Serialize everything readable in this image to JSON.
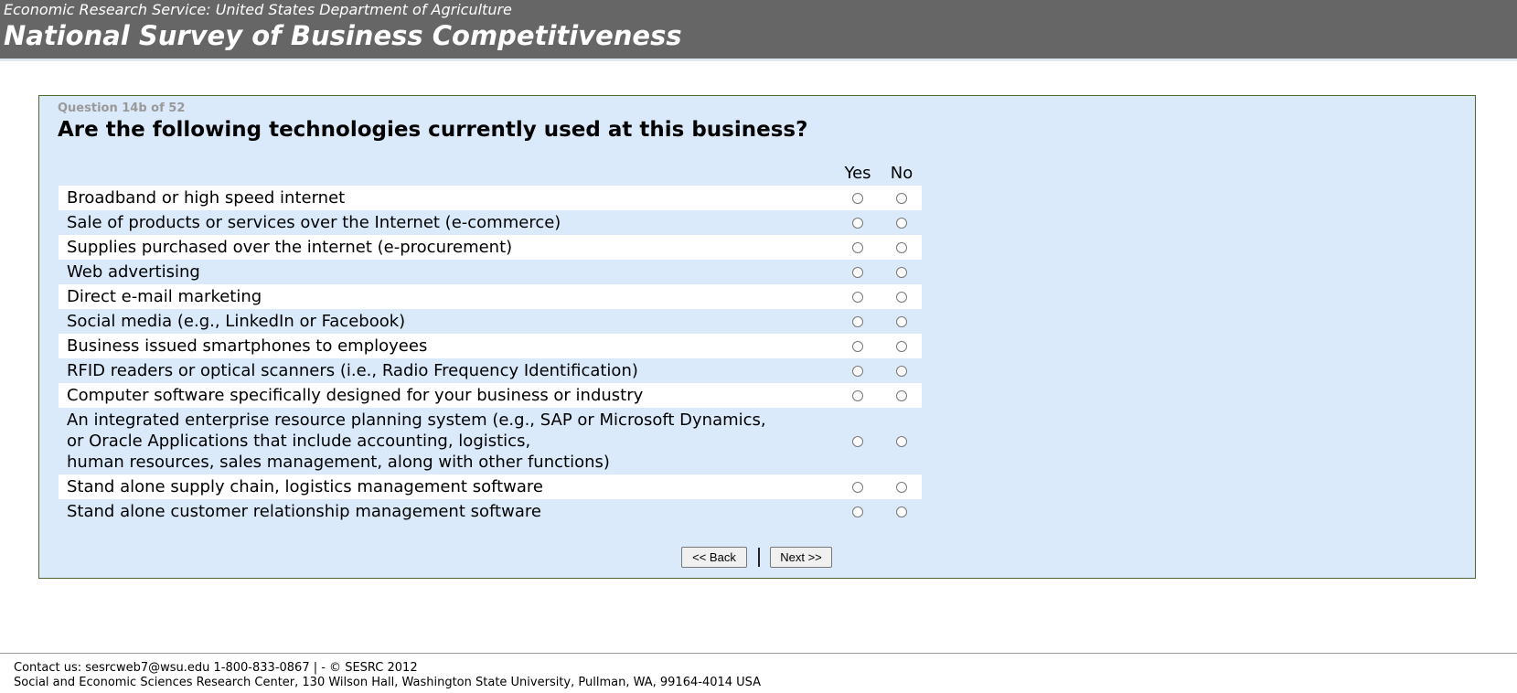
{
  "header": {
    "agency": "Economic Research Service: United States Department of Agriculture",
    "title": "National Survey of Business Competitiveness"
  },
  "question": {
    "number": "Question 14b of 52",
    "text": "Are the following technologies currently used at this business?"
  },
  "table": {
    "columns": [
      "Yes",
      "No"
    ],
    "rows": [
      "Broadband or high speed internet",
      "Sale of products or services over the Internet (e-commerce)",
      "Supplies purchased over the internet (e-procurement)",
      "Web advertising",
      "Direct e-mail marketing",
      "Social media (e.g., LinkedIn or Facebook)",
      "Business issued smartphones to employees",
      "RFID readers or optical scanners (i.e., Radio Frequency Identification)",
      "Computer software specifically designed for your business or industry",
      "An integrated enterprise resource planning system (e.g., SAP or Microsoft Dynamics,\nor Oracle Applications that include accounting, logistics,\nhuman resources, sales management, along with other functions)",
      "Stand alone supply chain, logistics management software",
      "Stand alone customer relationship management software"
    ]
  },
  "buttons": {
    "back": "<< Back",
    "next": "Next >>"
  },
  "footer": {
    "lines": [
      "Contact us: sesrcweb7@wsu.edu 1-800-833-0867 | - © SESRC 2012",
      "Social and Economic Sciences Research Center, 130 Wilson Hall, Washington State University, Pullman, WA, 99164-4014 USA"
    ]
  }
}
